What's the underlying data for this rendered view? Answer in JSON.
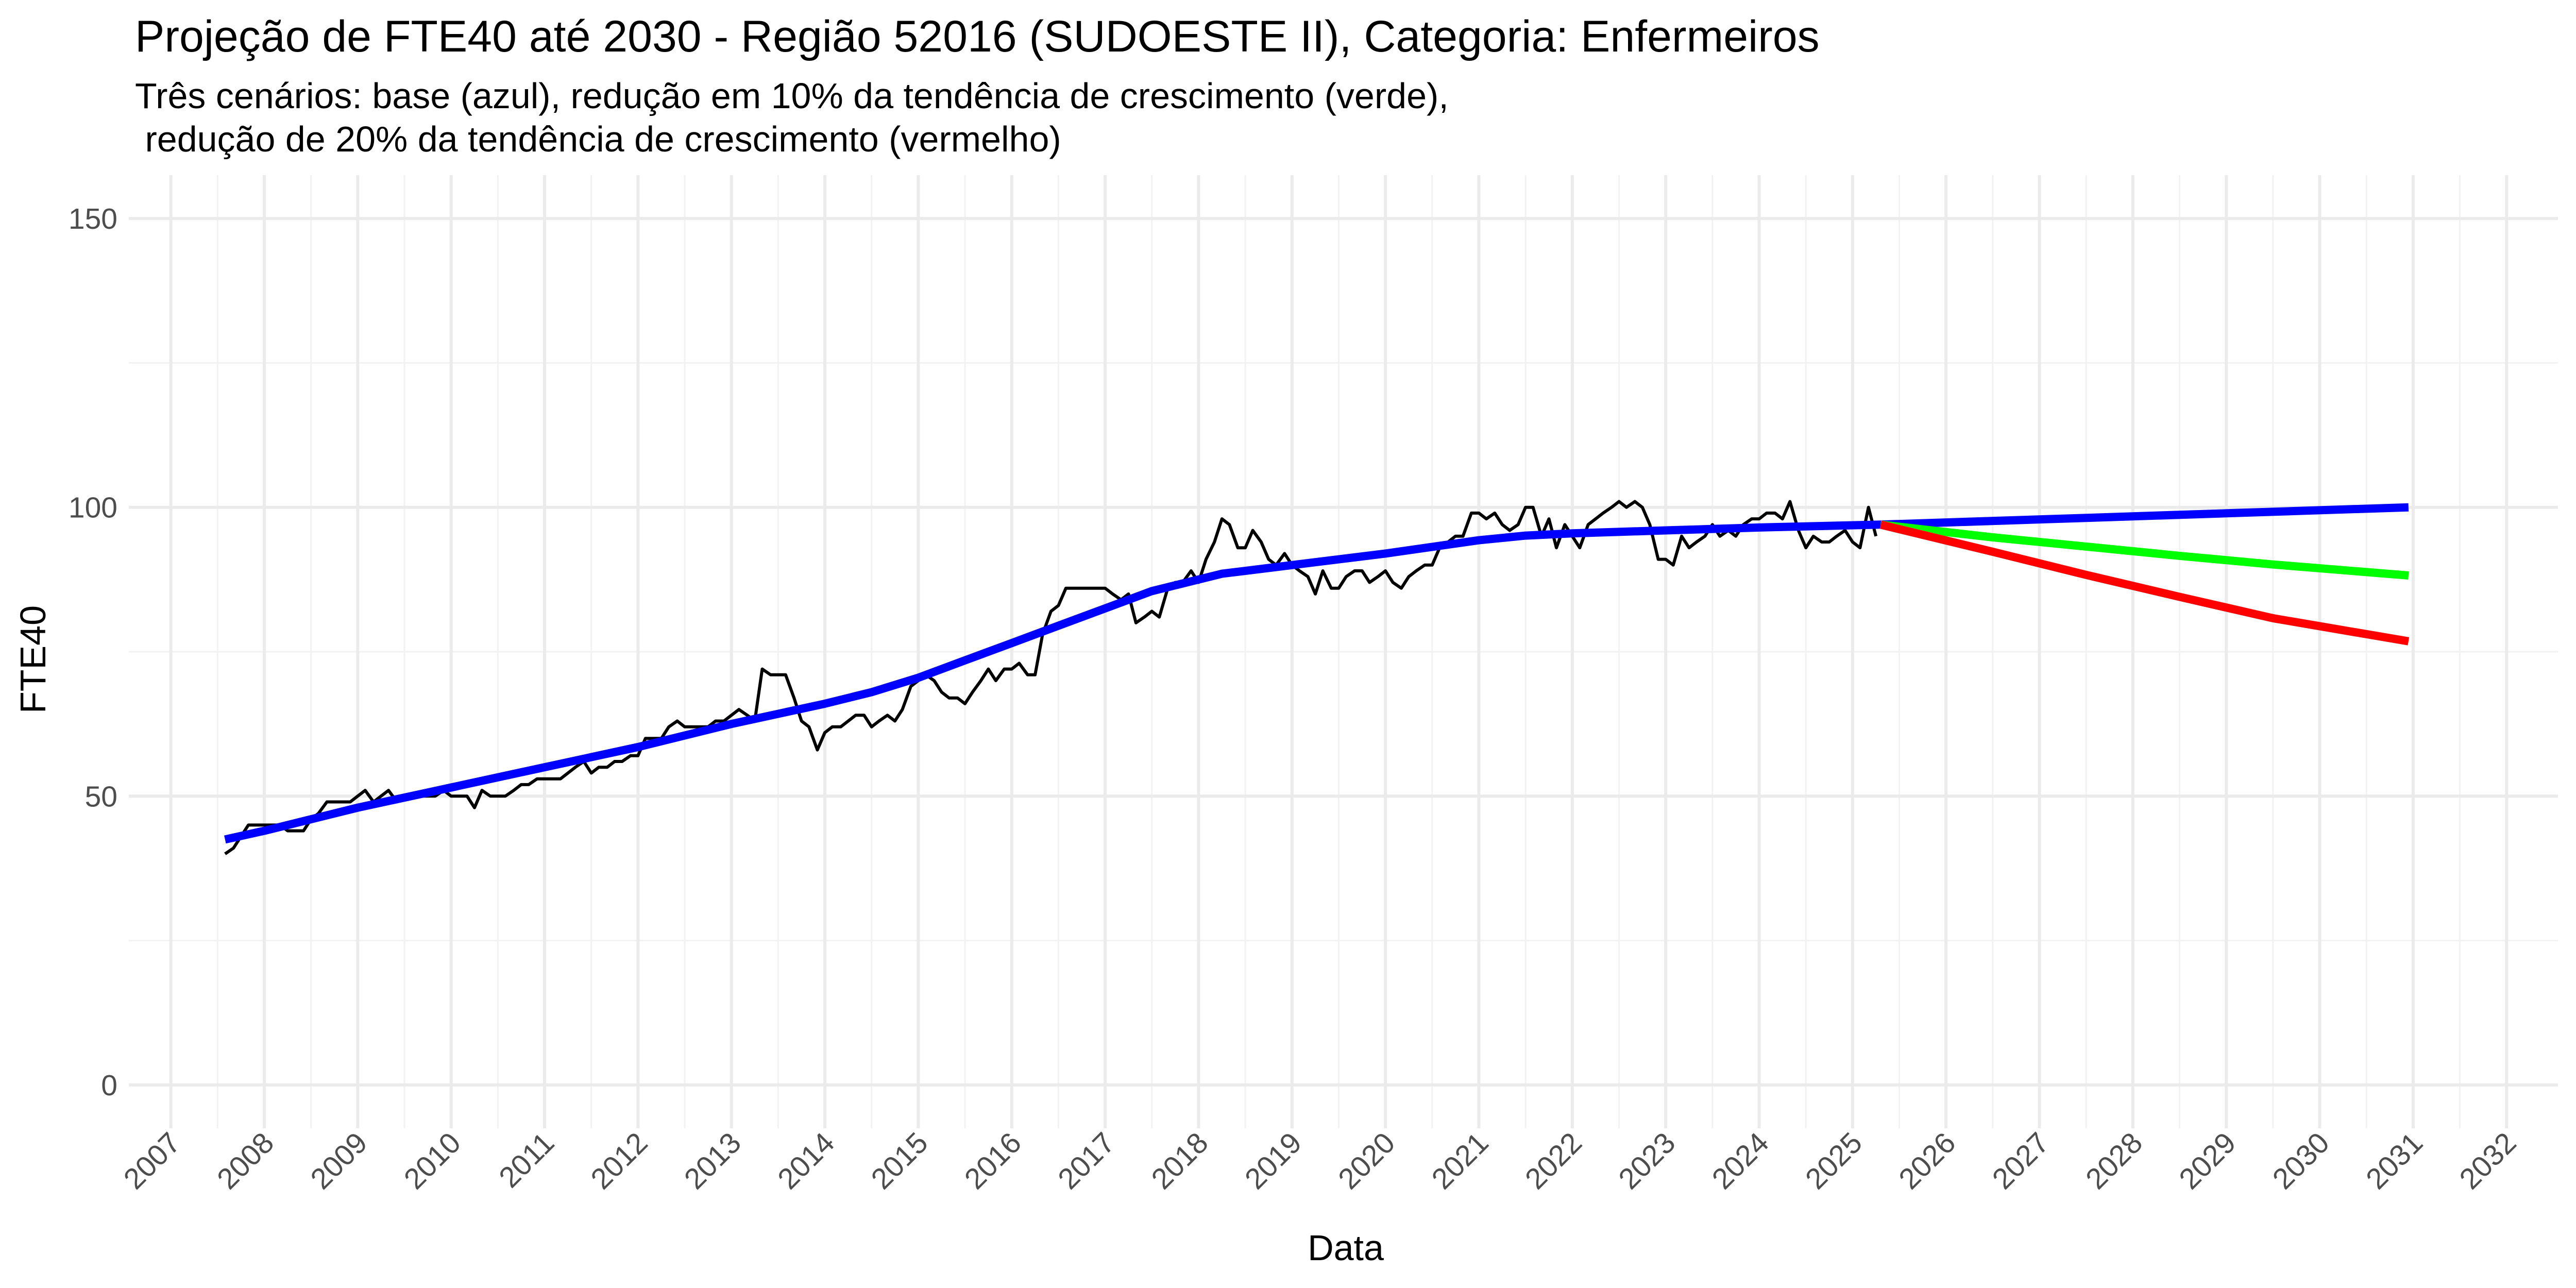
{
  "chart_data": {
    "type": "line",
    "title": "Projeção de FTE40 até 2030 - Região 52016 (SUDOESTE II), Categoria: Enfermeiros",
    "subtitle_lines": [
      "Três cenários: base (azul), redução em 10% da tendência de crescimento (verde),",
      " redução de 20% da tendência de crescimento (vermelho)"
    ],
    "xlabel": "Data",
    "ylabel": "FTE40",
    "xlim": [
      2006.55,
      2032.55
    ],
    "ylim": [
      -7.5,
      157.5
    ],
    "x_ticks": [
      "2007",
      "2008",
      "2009",
      "2010",
      "2011",
      "2012",
      "2013",
      "2014",
      "2015",
      "2016",
      "2017",
      "2018",
      "2019",
      "2020",
      "2021",
      "2022",
      "2023",
      "2024",
      "2025",
      "2026",
      "2027",
      "2028",
      "2029",
      "2030",
      "2031",
      "2032"
    ],
    "x_tick_values": [
      2007,
      2008,
      2009,
      2010,
      2011,
      2012,
      2013,
      2014,
      2015,
      2016,
      2017,
      2018,
      2019,
      2020,
      2021,
      2022,
      2023,
      2024,
      2025,
      2026,
      2027,
      2028,
      2029,
      2030,
      2031,
      2032
    ],
    "y_ticks": [
      "0",
      "50",
      "100",
      "150"
    ],
    "y_tick_values": [
      0,
      50,
      100,
      150
    ],
    "grid": true,
    "series": [
      {
        "color": "#000000",
        "points": [
          [
            2007.58,
            40
          ],
          [
            2007.67,
            41
          ],
          [
            2007.75,
            43
          ],
          [
            2007.83,
            45
          ],
          [
            2007.92,
            45
          ],
          [
            2008.0,
            45
          ],
          [
            2008.08,
            45
          ],
          [
            2008.17,
            45
          ],
          [
            2008.25,
            44
          ],
          [
            2008.33,
            44
          ],
          [
            2008.42,
            44
          ],
          [
            2008.5,
            46
          ],
          [
            2008.58,
            47
          ],
          [
            2008.67,
            49
          ],
          [
            2008.75,
            49
          ],
          [
            2008.83,
            49
          ],
          [
            2008.92,
            49
          ],
          [
            2009.0,
            50
          ],
          [
            2009.08,
            51
          ],
          [
            2009.17,
            49
          ],
          [
            2009.25,
            50
          ],
          [
            2009.33,
            51
          ],
          [
            2009.42,
            49
          ],
          [
            2009.5,
            50
          ],
          [
            2009.58,
            50
          ],
          [
            2009.67,
            50
          ],
          [
            2009.75,
            50
          ],
          [
            2009.83,
            50
          ],
          [
            2009.92,
            51
          ],
          [
            2010.0,
            50
          ],
          [
            2010.08,
            50
          ],
          [
            2010.17,
            50
          ],
          [
            2010.25,
            48
          ],
          [
            2010.33,
            51
          ],
          [
            2010.42,
            50
          ],
          [
            2010.5,
            50
          ],
          [
            2010.58,
            50
          ],
          [
            2010.67,
            51
          ],
          [
            2010.75,
            52
          ],
          [
            2010.83,
            52
          ],
          [
            2010.92,
            53
          ],
          [
            2011.0,
            53
          ],
          [
            2011.08,
            53
          ],
          [
            2011.17,
            53
          ],
          [
            2011.25,
            54
          ],
          [
            2011.33,
            55
          ],
          [
            2011.42,
            56
          ],
          [
            2011.5,
            54
          ],
          [
            2011.58,
            55
          ],
          [
            2011.67,
            55
          ],
          [
            2011.75,
            56
          ],
          [
            2011.83,
            56
          ],
          [
            2011.92,
            57
          ],
          [
            2012.0,
            57
          ],
          [
            2012.08,
            60
          ],
          [
            2012.17,
            60
          ],
          [
            2012.25,
            60
          ],
          [
            2012.33,
            62
          ],
          [
            2012.42,
            63
          ],
          [
            2012.5,
            62
          ],
          [
            2012.58,
            62
          ],
          [
            2012.67,
            62
          ],
          [
            2012.75,
            62
          ],
          [
            2012.83,
            63
          ],
          [
            2012.92,
            63
          ],
          [
            2013.0,
            64
          ],
          [
            2013.08,
            65
          ],
          [
            2013.17,
            64
          ],
          [
            2013.25,
            63
          ],
          [
            2013.33,
            72
          ],
          [
            2013.42,
            71
          ],
          [
            2013.5,
            71
          ],
          [
            2013.58,
            71
          ],
          [
            2013.67,
            67
          ],
          [
            2013.75,
            63
          ],
          [
            2013.83,
            62
          ],
          [
            2013.92,
            58
          ],
          [
            2014.0,
            61
          ],
          [
            2014.08,
            62
          ],
          [
            2014.17,
            62
          ],
          [
            2014.25,
            63
          ],
          [
            2014.33,
            64
          ],
          [
            2014.42,
            64
          ],
          [
            2014.5,
            62
          ],
          [
            2014.58,
            63
          ],
          [
            2014.67,
            64
          ],
          [
            2014.75,
            63
          ],
          [
            2014.83,
            65
          ],
          [
            2014.92,
            69
          ],
          [
            2015.0,
            70
          ],
          [
            2015.08,
            71
          ],
          [
            2015.17,
            70
          ],
          [
            2015.25,
            68
          ],
          [
            2015.33,
            67
          ],
          [
            2015.42,
            67
          ],
          [
            2015.5,
            66
          ],
          [
            2015.58,
            68
          ],
          [
            2015.67,
            70
          ],
          [
            2015.75,
            72
          ],
          [
            2015.83,
            70
          ],
          [
            2015.92,
            72
          ],
          [
            2016.0,
            72
          ],
          [
            2016.08,
            73
          ],
          [
            2016.17,
            71
          ],
          [
            2016.25,
            71
          ],
          [
            2016.33,
            78
          ],
          [
            2016.42,
            82
          ],
          [
            2016.5,
            83
          ],
          [
            2016.58,
            86
          ],
          [
            2016.67,
            86
          ],
          [
            2016.75,
            86
          ],
          [
            2016.83,
            86
          ],
          [
            2016.92,
            86
          ],
          [
            2017.0,
            86
          ],
          [
            2017.08,
            85
          ],
          [
            2017.17,
            84
          ],
          [
            2017.25,
            85
          ],
          [
            2017.33,
            80
          ],
          [
            2017.42,
            81
          ],
          [
            2017.5,
            82
          ],
          [
            2017.58,
            81
          ],
          [
            2017.67,
            86
          ],
          [
            2017.75,
            87
          ],
          [
            2017.83,
            87
          ],
          [
            2017.92,
            89
          ],
          [
            2018.0,
            87
          ],
          [
            2018.08,
            91
          ],
          [
            2018.17,
            94
          ],
          [
            2018.25,
            98
          ],
          [
            2018.33,
            97
          ],
          [
            2018.42,
            93
          ],
          [
            2018.5,
            93
          ],
          [
            2018.58,
            96
          ],
          [
            2018.67,
            94
          ],
          [
            2018.75,
            91
          ],
          [
            2018.83,
            90
          ],
          [
            2018.92,
            92
          ],
          [
            2019.0,
            90
          ],
          [
            2019.08,
            89
          ],
          [
            2019.17,
            88
          ],
          [
            2019.25,
            85
          ],
          [
            2019.33,
            89
          ],
          [
            2019.42,
            86
          ],
          [
            2019.5,
            86
          ],
          [
            2019.58,
            88
          ],
          [
            2019.67,
            89
          ],
          [
            2019.75,
            89
          ],
          [
            2019.83,
            87
          ],
          [
            2019.92,
            88
          ],
          [
            2020.0,
            89
          ],
          [
            2020.08,
            87
          ],
          [
            2020.17,
            86
          ],
          [
            2020.25,
            88
          ],
          [
            2020.33,
            89
          ],
          [
            2020.42,
            90
          ],
          [
            2020.5,
            90
          ],
          [
            2020.58,
            93
          ],
          [
            2020.67,
            94
          ],
          [
            2020.75,
            95
          ],
          [
            2020.83,
            95
          ],
          [
            2020.92,
            99
          ],
          [
            2021.0,
            99
          ],
          [
            2021.08,
            98
          ],
          [
            2021.17,
            99
          ],
          [
            2021.25,
            97
          ],
          [
            2021.33,
            96
          ],
          [
            2021.42,
            97
          ],
          [
            2021.5,
            100
          ],
          [
            2021.58,
            100
          ],
          [
            2021.67,
            95
          ],
          [
            2021.75,
            98
          ],
          [
            2021.83,
            93
          ],
          [
            2021.92,
            97
          ],
          [
            2022.0,
            95
          ],
          [
            2022.08,
            93
          ],
          [
            2022.17,
            97
          ],
          [
            2022.25,
            98
          ],
          [
            2022.33,
            99
          ],
          [
            2022.42,
            100
          ],
          [
            2022.5,
            101
          ],
          [
            2022.58,
            100
          ],
          [
            2022.67,
            101
          ],
          [
            2022.75,
            100
          ],
          [
            2022.83,
            97
          ],
          [
            2022.92,
            91
          ],
          [
            2023.0,
            91
          ],
          [
            2023.08,
            90
          ],
          [
            2023.17,
            95
          ],
          [
            2023.25,
            93
          ],
          [
            2023.33,
            94
          ],
          [
            2023.42,
            95
          ],
          [
            2023.5,
            97
          ],
          [
            2023.58,
            95
          ],
          [
            2023.67,
            96
          ],
          [
            2023.75,
            95
          ],
          [
            2023.83,
            97
          ],
          [
            2023.92,
            98
          ],
          [
            2024.0,
            98
          ],
          [
            2024.08,
            99
          ],
          [
            2024.17,
            99
          ],
          [
            2024.25,
            98
          ],
          [
            2024.33,
            101
          ],
          [
            2024.42,
            96
          ],
          [
            2024.5,
            93
          ],
          [
            2024.58,
            95
          ],
          [
            2024.67,
            94
          ],
          [
            2024.75,
            94
          ],
          [
            2024.83,
            95
          ],
          [
            2024.92,
            96
          ],
          [
            2025.0,
            94
          ],
          [
            2025.08,
            93
          ],
          [
            2025.17,
            100
          ],
          [
            2025.25,
            95
          ]
        ]
      },
      {
        "color": "#0000FF",
        "points": [
          [
            2007.58,
            42.5
          ],
          [
            2008.0,
            44
          ],
          [
            2009.0,
            48
          ],
          [
            2010.0,
            51.5
          ],
          [
            2011.0,
            55
          ],
          [
            2012.0,
            58.5
          ],
          [
            2013.0,
            62.5
          ],
          [
            2014.0,
            66
          ],
          [
            2014.5,
            68
          ],
          [
            2015.0,
            70.5
          ],
          [
            2015.5,
            73.5
          ],
          [
            2016.0,
            76.5
          ],
          [
            2016.5,
            79.5
          ],
          [
            2017.0,
            82.5
          ],
          [
            2017.5,
            85.5
          ],
          [
            2018.0,
            87.5
          ],
          [
            2018.25,
            88.5
          ],
          [
            2019.0,
            90
          ],
          [
            2020.0,
            92
          ],
          [
            2021.0,
            94.3
          ],
          [
            2021.5,
            95.1
          ],
          [
            2022.0,
            95.5
          ],
          [
            2023.0,
            96
          ],
          [
            2024.0,
            96.5
          ],
          [
            2025.3,
            97
          ]
        ]
      },
      {
        "color": "#0000FF",
        "points": [
          [
            2025.3,
            97
          ],
          [
            2030.95,
            100
          ]
        ]
      },
      {
        "color": "#00FF00",
        "points": [
          [
            2025.3,
            97
          ],
          [
            2026.5,
            94.8
          ],
          [
            2027.5,
            93.2
          ],
          [
            2028.5,
            91.6
          ],
          [
            2029.5,
            90.1
          ],
          [
            2030.95,
            88.2
          ]
        ]
      },
      {
        "color": "#FF0000",
        "points": [
          [
            2025.3,
            97
          ],
          [
            2026.5,
            92.3
          ],
          [
            2027.5,
            88.3
          ],
          [
            2028.5,
            84.5
          ],
          [
            2029.5,
            80.8
          ],
          [
            2030.95,
            76.8
          ]
        ]
      }
    ]
  }
}
